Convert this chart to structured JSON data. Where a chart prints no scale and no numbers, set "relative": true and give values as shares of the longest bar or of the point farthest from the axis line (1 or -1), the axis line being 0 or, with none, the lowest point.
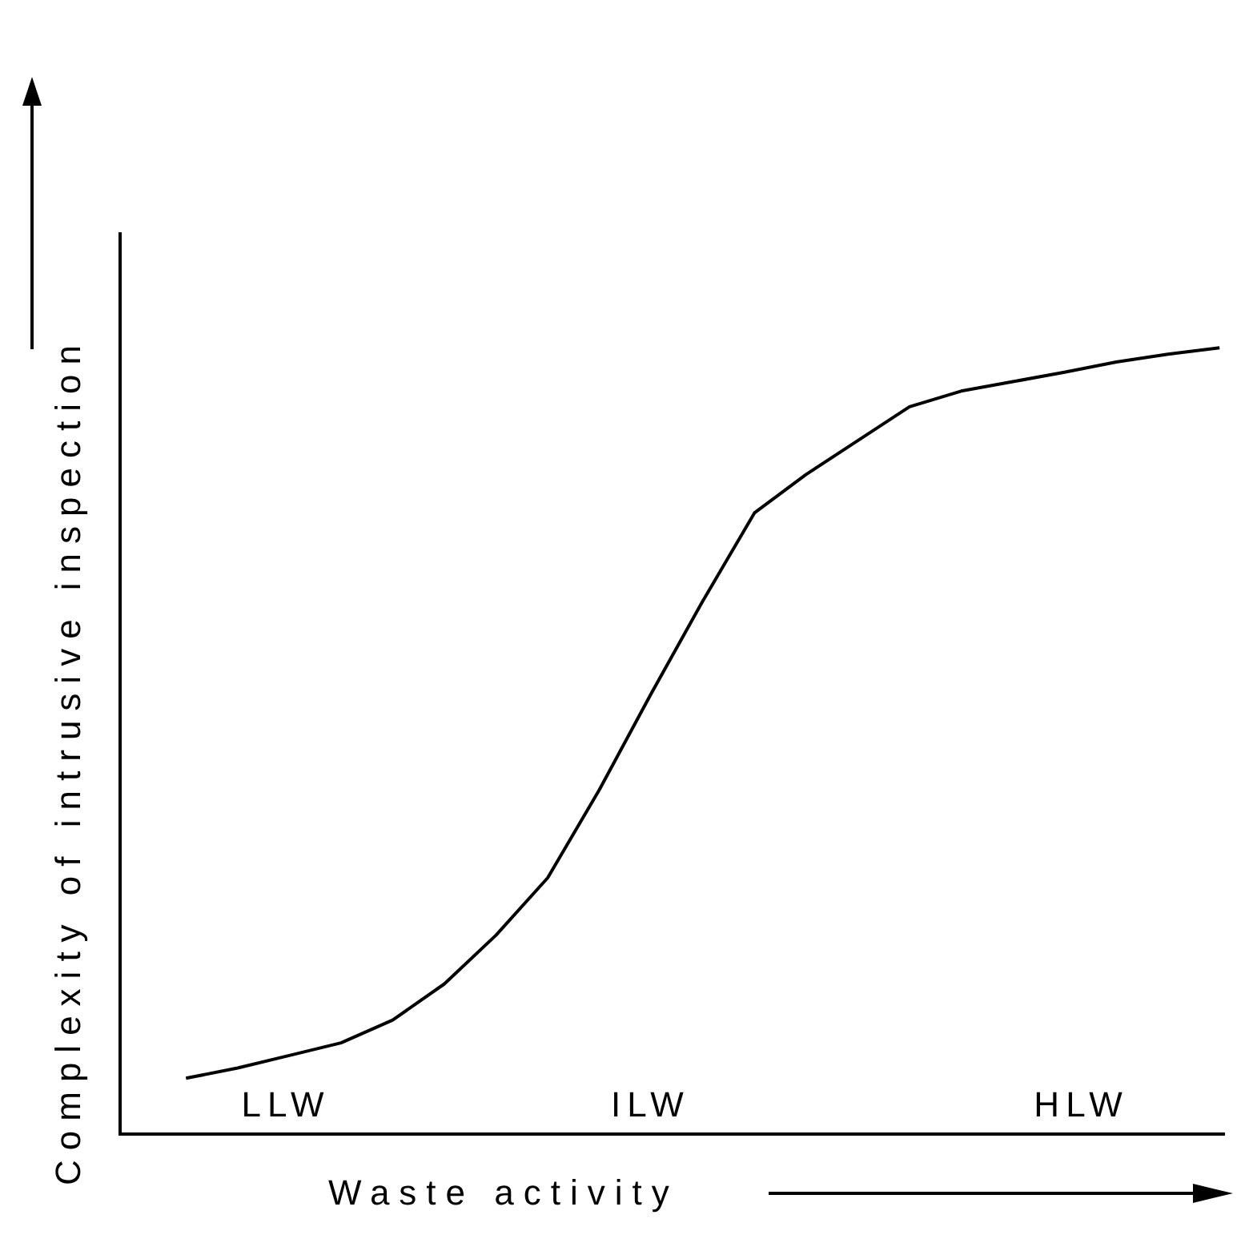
{
  "chart_data": {
    "type": "line",
    "relative": true,
    "xlabel": "Waste activity",
    "ylabel": "Complexity of intrusive inspection",
    "categories": [
      null,
      null,
      null,
      null,
      null,
      null,
      null,
      null,
      null,
      null,
      null,
      null,
      null,
      null,
      null,
      null,
      null,
      null,
      null,
      null,
      null
    ],
    "series": [
      {
        "color": "#000000",
        "values": [
          0.071,
          0.084,
          0.1,
          0.116,
          0.145,
          0.191,
          0.253,
          0.326,
          0.438,
          0.56,
          0.678,
          0.79,
          0.839,
          0.882,
          0.925,
          0.945,
          0.957,
          0.969,
          0.982,
          0.992,
          1
        ]
      }
    ],
    "annotations": [
      "LLW",
      "ILW",
      "HLW"
    ],
    "legend": false,
    "marker": "none",
    "line_style": "solid"
  }
}
